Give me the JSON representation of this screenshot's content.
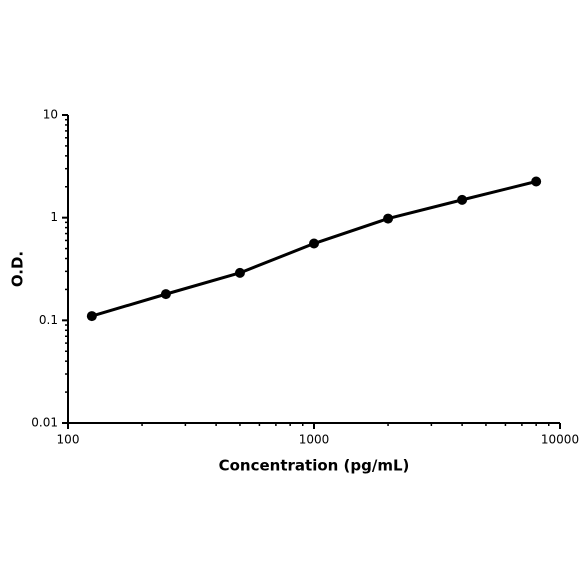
{
  "chart_data": {
    "type": "line",
    "x_label": "Concentration (pg/mL)",
    "y_label": "O.D.",
    "x": [
      125,
      250,
      500,
      1000,
      2000,
      4000,
      8000
    ],
    "series": [
      {
        "color": "#000000",
        "values": [
          0.11,
          0.18,
          0.29,
          0.56,
          0.98,
          1.49,
          2.25
        ]
      }
    ],
    "xlim": [
      100,
      10000
    ],
    "xticks": [
      100,
      1000,
      10000
    ],
    "ylim": [
      0.01,
      10
    ],
    "yticks": [
      0.01,
      0.1,
      1,
      10
    ],
    "xscale": "log",
    "yscale": "log",
    "grid": false
  }
}
